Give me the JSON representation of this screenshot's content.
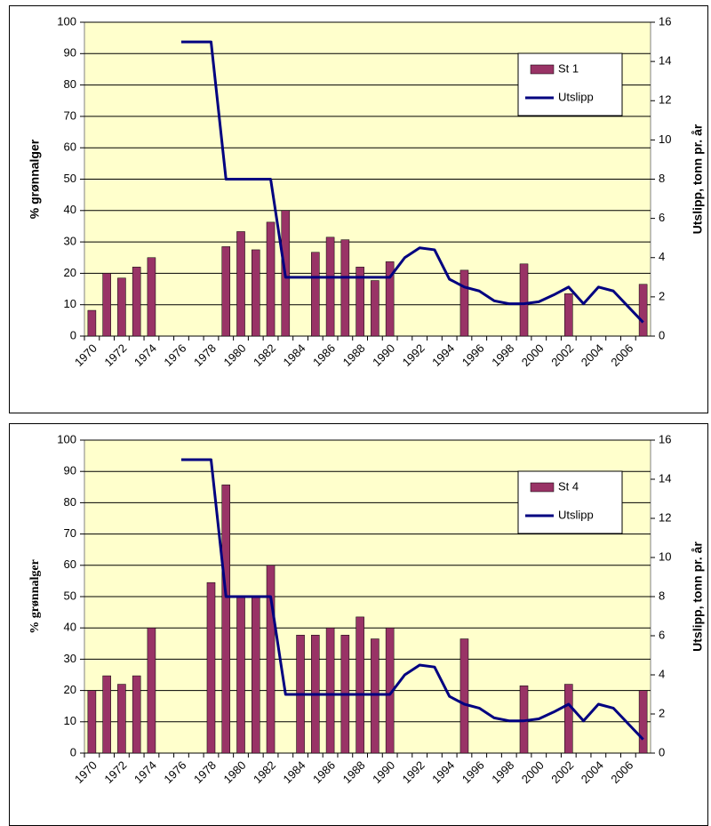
{
  "chart_data": [
    {
      "type": "combo",
      "y_label": "% grønnalger",
      "y2_label": "Utslipp, tonn pr. år",
      "categories": [
        "1970",
        null,
        "1972",
        null,
        "1974",
        null,
        "1976",
        null,
        "1978",
        null,
        "1980",
        null,
        "1982",
        null,
        "1984",
        null,
        "1986",
        null,
        "1988",
        null,
        "1990",
        null,
        "1992",
        null,
        "1994",
        null,
        "1996",
        null,
        "1998",
        null,
        "2000",
        null,
        "2002",
        null,
        "2004",
        null,
        "2006",
        null
      ],
      "series": [
        {
          "name": "St 1",
          "type": "bar",
          "color": "#993366",
          "values": [
            8.2,
            20,
            18.5,
            22,
            25,
            null,
            null,
            null,
            null,
            28.5,
            33.3,
            27.5,
            36.3,
            40,
            null,
            26.7,
            31.5,
            30.7,
            22,
            17.7,
            23.7,
            null,
            null,
            null,
            null,
            21,
            null,
            null,
            null,
            23,
            null,
            null,
            13.5,
            null,
            null,
            null,
            null,
            16.5
          ]
        },
        {
          "name": "Utslipp",
          "type": "line",
          "axis": "y2",
          "color": "#000080",
          "values": [
            null,
            null,
            null,
            null,
            null,
            null,
            15,
            15,
            15,
            8,
            8,
            8,
            8,
            3,
            3,
            3,
            3,
            3,
            3,
            3,
            3,
            4,
            4.5,
            4.4,
            2.9,
            2.5,
            2.3,
            1.8,
            1.65,
            1.65,
            1.75,
            2.1,
            2.5,
            1.65,
            2.5,
            2.3,
            1.5,
            0.7
          ]
        }
      ],
      "ylim": [
        0,
        100
      ],
      "yticks": [
        0,
        10,
        20,
        30,
        40,
        50,
        60,
        70,
        80,
        90,
        100
      ],
      "y2lim": [
        0,
        16
      ],
      "y2ticks": [
        0,
        2,
        4,
        6,
        8,
        10,
        12,
        14,
        16
      ],
      "grid": true,
      "legend": "upper right"
    },
    {
      "type": "combo",
      "y_label": "% grønnalger",
      "y2_label": "Utslipp, tonn pr. år",
      "categories": [
        "1970",
        null,
        "1972",
        null,
        "1974",
        null,
        "1976",
        null,
        "1978",
        null,
        "1980",
        null,
        "1982",
        null,
        "1984",
        null,
        "1986",
        null,
        "1988",
        null,
        "1990",
        null,
        "1992",
        null,
        "1994",
        null,
        "1996",
        null,
        "1998",
        null,
        "2000",
        null,
        "2002",
        null,
        "2004",
        null,
        "2006",
        null
      ],
      "series": [
        {
          "name": "St 4",
          "type": "bar",
          "color": "#993366",
          "values": [
            20,
            24.7,
            22,
            24.7,
            40,
            null,
            null,
            null,
            54.5,
            85.7,
            50,
            50,
            60,
            null,
            37.7,
            37.7,
            40,
            37.7,
            43.5,
            36.5,
            40,
            null,
            null,
            null,
            null,
            36.5,
            null,
            null,
            null,
            21.5,
            null,
            null,
            22,
            null,
            null,
            null,
            null,
            20
          ]
        },
        {
          "name": "Utslipp",
          "type": "line",
          "axis": "y2",
          "color": "#000080",
          "values": [
            null,
            null,
            null,
            null,
            null,
            null,
            15,
            15,
            15,
            8,
            8,
            8,
            8,
            3,
            3,
            3,
            3,
            3,
            3,
            3,
            3,
            4,
            4.5,
            4.4,
            2.9,
            2.5,
            2.3,
            1.8,
            1.65,
            1.65,
            1.75,
            2.1,
            2.5,
            1.65,
            2.5,
            2.3,
            1.5,
            0.7
          ]
        }
      ],
      "ylim": [
        0,
        100
      ],
      "yticks": [
        0,
        10,
        20,
        30,
        40,
        50,
        60,
        70,
        80,
        90,
        100
      ],
      "y2lim": [
        0,
        16
      ],
      "y2ticks": [
        0,
        2,
        4,
        6,
        8,
        10,
        12,
        14,
        16
      ],
      "grid": true,
      "legend": "upper right"
    }
  ]
}
